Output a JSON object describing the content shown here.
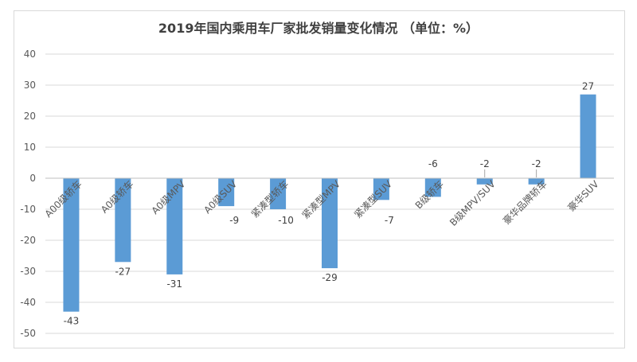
{
  "chart_data": {
    "type": "bar",
    "title": "2019年国内乘用车厂家批发销量变化情况 （单位：%）",
    "categories": [
      "A00级轿车",
      "A0级轿车",
      "A0级MPV",
      "A0级SUV",
      "紧凑型轿车",
      "紧凑型MPV",
      "紧凑型SUV",
      "B级轿车",
      "B级MPV/SUV",
      "豪华品牌轿车",
      "豪华SUV"
    ],
    "series": [
      {
        "values": [
          -43,
          -27,
          -31,
          -9,
          -10,
          -29,
          -7,
          -6,
          -2,
          -2,
          27
        ],
        "color": "#5b9bd5"
      }
    ],
    "ylim": [
      -50,
      40
    ],
    "yticks": [
      40,
      30,
      20,
      10,
      0,
      -10,
      -20,
      -30,
      -40,
      -50
    ],
    "grid": true,
    "legend": "none"
  }
}
